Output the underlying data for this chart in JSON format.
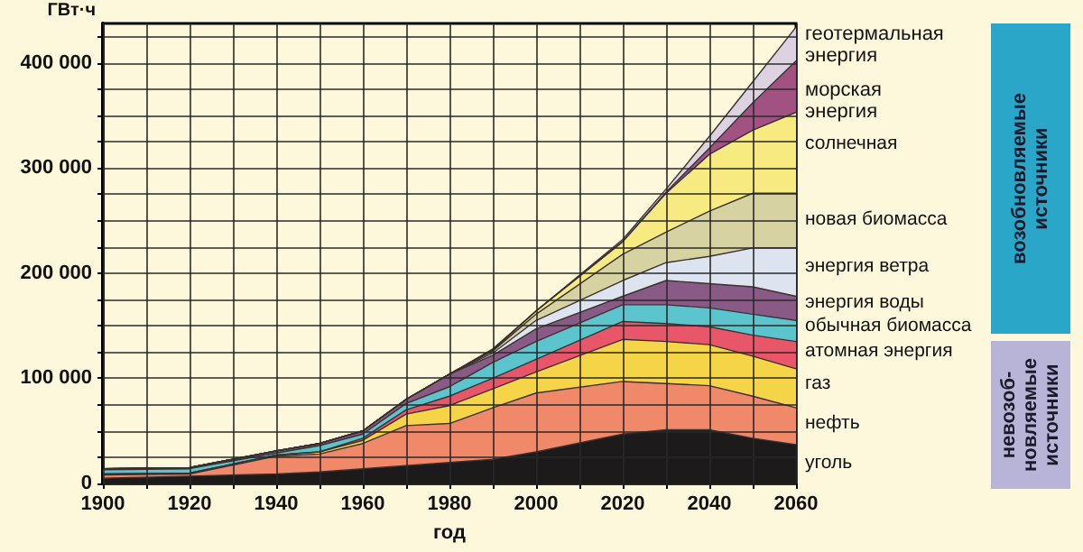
{
  "chart_data": {
    "type": "area",
    "stacked": true,
    "xlabel": "год",
    "ylabel": "ГВт·ч",
    "x": [
      1900,
      1920,
      1940,
      1950,
      1960,
      1970,
      1980,
      1990,
      2000,
      2020,
      2030,
      2040,
      2050,
      2060
    ],
    "xlim": [
      1900,
      2060
    ],
    "xticks": [
      1900,
      {
        "value": 1910,
        "label": null
      },
      1920,
      {
        "value": 1930,
        "label": null
      },
      1940,
      {
        "value": 1950,
        "label": null
      },
      1960,
      {
        "value": 1970,
        "label": null
      },
      1980,
      {
        "value": 1990,
        "label": null
      },
      2000,
      {
        "value": 2010,
        "label": null
      },
      2020,
      {
        "value": 2030,
        "label": null
      },
      2040,
      {
        "value": 2050,
        "label": null
      },
      2060
    ],
    "ylim": [
      0,
      437500
    ],
    "yticks": [
      0,
      {
        "value": 25000,
        "label": null
      },
      {
        "value": 50000,
        "label": null
      },
      {
        "value": 75000,
        "label": null
      },
      {
        "value": 100000,
        "label": "100 000"
      },
      {
        "value": 125000,
        "label": null
      },
      {
        "value": 150000,
        "label": null
      },
      {
        "value": 175000,
        "label": null
      },
      {
        "value": 200000,
        "label": "200 000"
      },
      {
        "value": 225000,
        "label": null
      },
      {
        "value": 250000,
        "label": null
      },
      {
        "value": 275000,
        "label": null
      },
      {
        "value": 300000,
        "label": "300 000"
      },
      {
        "value": 325000,
        "label": null
      },
      {
        "value": 350000,
        "label": null
      },
      {
        "value": 375000,
        "label": null
      },
      {
        "value": 400000,
        "label": "400 000"
      },
      {
        "value": 425000,
        "label": null
      }
    ],
    "grid": true,
    "legend": false,
    "series": [
      {
        "name": "уголь",
        "color": "#1c1a1a",
        "values": [
          5000,
          7000,
          9000,
          11000,
          14000,
          17000,
          20000,
          23000,
          30000,
          47000,
          51000,
          51000,
          43000,
          37000
        ]
      },
      {
        "name": "нефть",
        "color": "#f0886a",
        "values": [
          3000,
          2000,
          17000,
          17000,
          24000,
          38000,
          37000,
          49000,
          56000,
          50000,
          44000,
          42000,
          40000,
          35000
        ]
      },
      {
        "name": "газ",
        "color": "#f6d448",
        "values": [
          1000,
          1000,
          1000,
          2000,
          3000,
          11000,
          17000,
          18000,
          20000,
          40000,
          40000,
          39000,
          38000,
          37000
        ]
      },
      {
        "name": "атомная энергия",
        "color": "#e8566a",
        "values": [
          0,
          0,
          0,
          0,
          2000,
          4000,
          9000,
          10000,
          12000,
          17000,
          17000,
          17000,
          20000,
          26000
        ]
      },
      {
        "name": "обычная биомасса",
        "color": "#5cc4cc",
        "values": [
          4000,
          4000,
          2000,
          6000,
          4000,
          6000,
          9000,
          15000,
          17000,
          16000,
          18000,
          18000,
          20000,
          20000
        ]
      },
      {
        "name": "энергия воды",
        "color": "#8a5a86",
        "values": [
          1000,
          1000,
          2000,
          2000,
          3000,
          4000,
          12000,
          7000,
          12000,
          8000,
          23000,
          23000,
          26000,
          23000
        ]
      },
      {
        "name": "энергия ветра",
        "color": "#dde4f0",
        "values": [
          0,
          0,
          0,
          0,
          0,
          0,
          0,
          2000,
          8000,
          15000,
          17000,
          26000,
          37000,
          46000
        ]
      },
      {
        "name": "новая биомасса",
        "color": "#d6d2a2",
        "values": [
          0,
          0,
          0,
          0,
          0,
          0,
          0,
          2000,
          6000,
          25000,
          29000,
          43000,
          52000,
          52000
        ]
      },
      {
        "name": "солнечная",
        "color": "#f6ea80",
        "values": [
          0,
          0,
          0,
          0,
          0,
          0,
          0,
          1000,
          3000,
          12000,
          37000,
          54000,
          60000,
          77000
        ]
      },
      {
        "name": "морская энергия",
        "color": "#a25282",
        "values": [
          0,
          0,
          0,
          0,
          0,
          0,
          0,
          0,
          0,
          0,
          1000,
          6000,
          26000,
          49000
        ]
      },
      {
        "name": "геотермальная энергия",
        "color": "#dcd2e2",
        "values": [
          0,
          0,
          0,
          0,
          0,
          0,
          0,
          1000,
          0,
          2000,
          3000,
          11000,
          20000,
          32000
        ]
      }
    ],
    "annotations": [
      "возобновляемые источники",
      "невозоб-новляемые источники"
    ]
  }
}
